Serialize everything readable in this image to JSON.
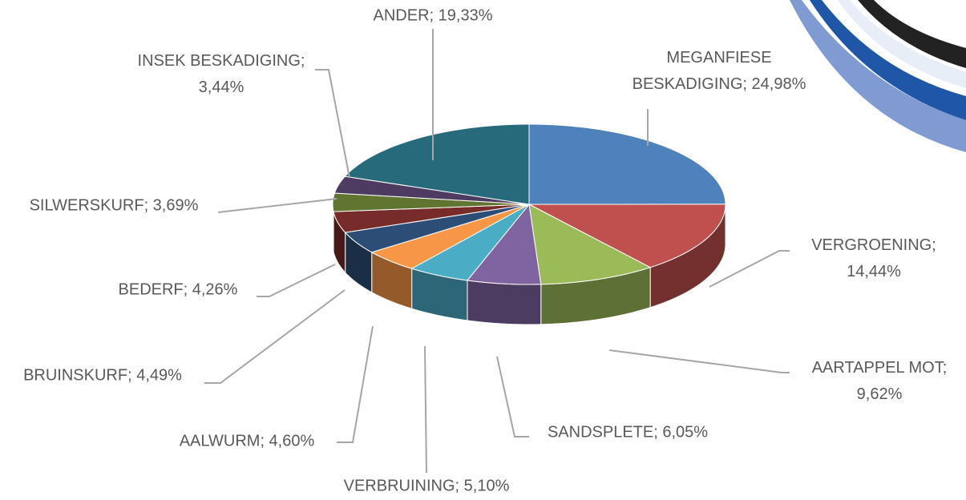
{
  "chart_data": {
    "type": "pie",
    "values": [
      24.98,
      14.44,
      9.62,
      6.05,
      5.1,
      4.6,
      4.49,
      4.26,
      3.69,
      3.44,
      19.33
    ],
    "value_labels": [
      "MEGANFIESE BESKADIGING; 24,98%",
      "VERGROENING; 14,44%",
      "AARTAPPEL MOT; 9,62%",
      "SANDSPLETE; 6,05%",
      "VERBRUINING; 5,10%",
      "AALWURM; 4,60%",
      "BRUINSKURF; 4,49%",
      "BEDERF; 4,26%",
      "SILWERSKURF; 3,69%",
      "INSEK BESKADIGING; 3,44%",
      "ANDER; 19,33%"
    ],
    "colors": [
      "#4f81bd",
      "#c0504d",
      "#9bbb59",
      "#8064a2",
      "#4bacc6",
      "#f79646",
      "#2c4d75",
      "#772c2a",
      "#5f7530",
      "#4d3b62",
      "#276a7c"
    ]
  }
}
